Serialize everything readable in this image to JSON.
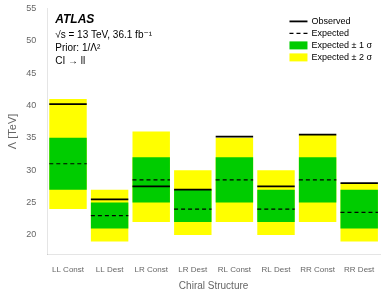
{
  "chart_data": {
    "type": "bar",
    "xlabel": "Chiral Structure",
    "ylabel": "Λ [TeV]",
    "categories": [
      "LL Const",
      "LL Dest",
      "LR Const",
      "LR Dest",
      "RL Const",
      "RL Dest",
      "RR Const",
      "RR Dest"
    ],
    "series": [
      {
        "name": "Observed",
        "type": "line",
        "line_style": "solid",
        "color": "#000000",
        "values": [
          40.2,
          25.5,
          27.5,
          27.0,
          35.2,
          27.5,
          35.5,
          28.0
        ]
      },
      {
        "name": "Expected",
        "type": "line",
        "line_style": "dashed",
        "color": "#000000",
        "values": [
          31.0,
          23.0,
          28.5,
          24.0,
          28.5,
          24.0,
          28.5,
          23.5
        ]
      },
      {
        "name": "Expected ± 1 σ",
        "type": "bar",
        "color": "#00cc00",
        "low": [
          27.0,
          21.0,
          25.0,
          22.0,
          25.0,
          22.0,
          25.0,
          21.0
        ],
        "high": [
          35.0,
          25.0,
          32.0,
          27.0,
          32.0,
          27.0,
          32.0,
          27.0
        ]
      },
      {
        "name": "Expected ± 2 σ",
        "type": "bar",
        "color": "#ffff00",
        "low": [
          24.0,
          19.0,
          22.0,
          20.0,
          22.0,
          20.0,
          22.0,
          19.0
        ],
        "high": [
          41.0,
          27.0,
          36.0,
          30.0,
          35.0,
          30.0,
          35.5,
          28.0
        ]
      }
    ],
    "annotations": [
      "ATLAS",
      "√s = 13 TeV, 36.1 fb⁻¹",
      "Prior: 1/Λ²",
      "CI → ll"
    ],
    "ylim": [
      17,
      55
    ],
    "yticks": [
      20,
      25,
      30,
      35,
      40,
      45,
      50,
      55
    ],
    "legend": "upper right",
    "grid": false
  }
}
